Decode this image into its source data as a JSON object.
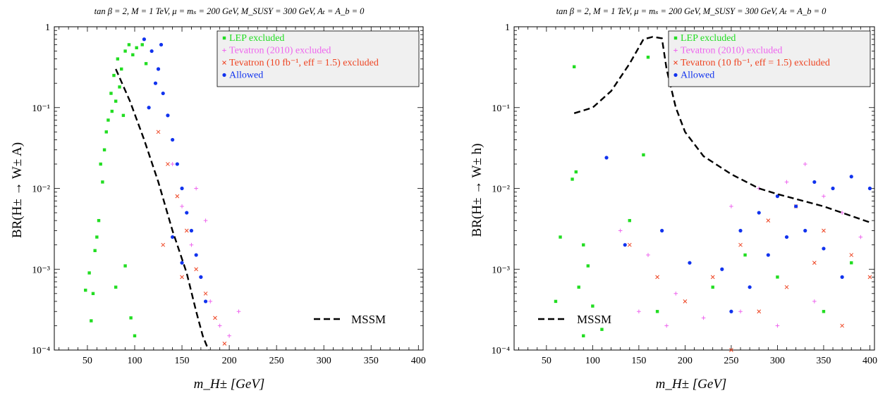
{
  "legend": {
    "entries": [
      {
        "label": "LEP excluded",
        "color": "#22dd22",
        "marker": "square"
      },
      {
        "label": "Tevatron (2010) excluded",
        "color": "#ee66ee",
        "marker": "plus"
      },
      {
        "label": "Tevatron (10 fb⁻¹, eff = 1.5) excluded",
        "color": "#ee4422",
        "marker": "cross"
      },
      {
        "label": "Allowed",
        "color": "#1133ee",
        "marker": "dot"
      }
    ],
    "placement": "top-right"
  },
  "chart_data": [
    {
      "type": "scatter",
      "title": "tan β = 2,  M = 1 TeV,  μ = mₛ = 200 GeV,  M_SUSY = 300 GeV,  Aₜ = A_b = 0",
      "xlabel": "m_H± [GeV]",
      "ylabel": "BR(H± → W± A)",
      "xlim": [
        15,
        405
      ],
      "ylim": [
        0.0001,
        1
      ],
      "yscale": "log",
      "xticks": [
        50,
        100,
        150,
        200,
        250,
        300,
        350,
        400
      ],
      "xtick_labels": [
        "50",
        "100",
        "150",
        "200",
        "250",
        "300",
        "350",
        "400"
      ],
      "yticks": [
        0.0001,
        0.001,
        0.01,
        0.1,
        1
      ],
      "ytick_labels": [
        "10⁻⁴",
        "10⁻³",
        "10⁻²",
        "10⁻¹",
        "1"
      ],
      "grid": false,
      "series": [
        {
          "name": "LEP excluded",
          "points": [
            [
              48,
              0.00055
            ],
            [
              52,
              0.0009
            ],
            [
              58,
              0.0017
            ],
            [
              62,
              0.004
            ],
            [
              66,
              0.012
            ],
            [
              68,
              0.03
            ],
            [
              72,
              0.07
            ],
            [
              75,
              0.15
            ],
            [
              78,
              0.25
            ],
            [
              82,
              0.4
            ],
            [
              86,
              0.3
            ],
            [
              90,
              0.5
            ],
            [
              94,
              0.6
            ],
            [
              98,
              0.45
            ],
            [
              102,
              0.55
            ],
            [
              108,
              0.6
            ],
            [
              112,
              0.35
            ],
            [
              70,
              0.05
            ],
            [
              76,
              0.09
            ],
            [
              80,
              0.12
            ],
            [
              84,
              0.18
            ],
            [
              88,
              0.08
            ],
            [
              64,
              0.02
            ],
            [
              60,
              0.0025
            ],
            [
              56,
              0.0005
            ],
            [
              54,
              0.00023
            ],
            [
              80,
              0.0006
            ],
            [
              90,
              0.0011
            ],
            [
              96,
              0.00025
            ],
            [
              100,
              0.00015
            ]
          ]
        },
        {
          "name": "Tevatron (2010) excluded",
          "points": [
            [
              140,
              0.02
            ],
            [
              150,
              0.006
            ],
            [
              160,
              0.002
            ],
            [
              170,
              0.0008
            ],
            [
              180,
              0.0004
            ],
            [
              190,
              0.0002
            ],
            [
              200,
              0.00015
            ],
            [
              210,
              0.0003
            ],
            [
              165,
              0.01
            ],
            [
              175,
              0.004
            ]
          ]
        },
        {
          "name": "Tevatron (10 fb⁻¹, eff = 1.5) excluded",
          "points": [
            [
              125,
              0.05
            ],
            [
              135,
              0.02
            ],
            [
              145,
              0.008
            ],
            [
              155,
              0.003
            ],
            [
              165,
              0.001
            ],
            [
              175,
              0.0005
            ],
            [
              185,
              0.00025
            ],
            [
              195,
              0.00012
            ],
            [
              130,
              0.002
            ],
            [
              150,
              0.0008
            ]
          ]
        },
        {
          "name": "Allowed",
          "points": [
            [
              110,
              0.7
            ],
            [
              118,
              0.5
            ],
            [
              125,
              0.3
            ],
            [
              130,
              0.15
            ],
            [
              135,
              0.08
            ],
            [
              140,
              0.04
            ],
            [
              145,
              0.02
            ],
            [
              150,
              0.01
            ],
            [
              155,
              0.005
            ],
            [
              160,
              0.003
            ],
            [
              165,
              0.0015
            ],
            [
              170,
              0.0008
            ],
            [
              175,
              0.0004
            ],
            [
              150,
              0.0012
            ],
            [
              140,
              0.0025
            ],
            [
              128,
              0.6
            ],
            [
              122,
              0.2
            ],
            [
              115,
              0.1
            ]
          ]
        },
        {
          "name": "MSSM",
          "line": "dashed",
          "points": [
            [
              80,
              0.3
            ],
            [
              95,
              0.12
            ],
            [
              110,
              0.04
            ],
            [
              125,
              0.012
            ],
            [
              140,
              0.003
            ],
            [
              155,
              0.0009
            ],
            [
              165,
              0.0003
            ],
            [
              172,
              0.00015
            ],
            [
              178,
              0.0001
            ]
          ]
        }
      ]
    },
    {
      "type": "scatter",
      "title": "tan β = 2,  M = 1 TeV,  μ = mₛ = 200 GeV,  M_SUSY = 300 GeV,  Aₜ = A_b = 0",
      "xlabel": "m_H± [GeV]",
      "ylabel": "BR(H± → W± h)",
      "xlim": [
        15,
        405
      ],
      "ylim": [
        0.0001,
        1
      ],
      "yscale": "log",
      "xticks": [
        50,
        100,
        150,
        200,
        250,
        300,
        350,
        400
      ],
      "xtick_labels": [
        "50",
        "100",
        "150",
        "200",
        "250",
        "300",
        "350",
        "400"
      ],
      "yticks": [
        0.0001,
        0.001,
        0.01,
        0.1,
        1
      ],
      "ytick_labels": [
        "10⁻⁴",
        "10⁻³",
        "10⁻²",
        "10⁻¹",
        "1"
      ],
      "grid": false,
      "series": [
        {
          "name": "LEP excluded",
          "points": [
            [
              80,
              0.32
            ],
            [
              160,
              0.42
            ],
            [
              155,
              0.026
            ],
            [
              78,
              0.013
            ],
            [
              82,
              0.016
            ],
            [
              90,
              0.002
            ],
            [
              95,
              0.0011
            ],
            [
              85,
              0.0006
            ],
            [
              100,
              0.00035
            ],
            [
              110,
              0.00018
            ],
            [
              65,
              0.0025
            ],
            [
              60,
              0.0004
            ],
            [
              90,
              0.00015
            ],
            [
              140,
              0.004
            ],
            [
              170,
              0.0003
            ],
            [
              230,
              0.0006
            ],
            [
              300,
              0.0008
            ],
            [
              350,
              0.0003
            ],
            [
              380,
              0.0012
            ],
            [
              265,
              0.0015
            ]
          ]
        },
        {
          "name": "Tevatron (2010) excluded",
          "points": [
            [
              130,
              0.003
            ],
            [
              160,
              0.0015
            ],
            [
              190,
              0.0005
            ],
            [
              220,
              0.00025
            ],
            [
              250,
              0.006
            ],
            [
              280,
              0.01
            ],
            [
              310,
              0.012
            ],
            [
              330,
              0.02
            ],
            [
              350,
              0.008
            ],
            [
              370,
              0.005
            ],
            [
              390,
              0.0025
            ],
            [
              260,
              0.0003
            ],
            [
              300,
              0.0002
            ],
            [
              340,
              0.0004
            ],
            [
              180,
              0.0002
            ],
            [
              150,
              0.0003
            ]
          ]
        },
        {
          "name": "Tevatron (10 fb⁻¹, eff = 1.5) excluded",
          "points": [
            [
              140,
              0.002
            ],
            [
              170,
              0.0008
            ],
            [
              200,
              0.0004
            ],
            [
              230,
              0.0008
            ],
            [
              260,
              0.002
            ],
            [
              290,
              0.004
            ],
            [
              320,
              0.006
            ],
            [
              350,
              0.003
            ],
            [
              380,
              0.0015
            ],
            [
              400,
              0.0008
            ],
            [
              250,
              0.0001
            ],
            [
              280,
              0.0003
            ],
            [
              310,
              0.0006
            ],
            [
              340,
              0.0012
            ],
            [
              370,
              0.0002
            ]
          ]
        },
        {
          "name": "Allowed",
          "points": [
            [
              115,
              0.024
            ],
            [
              135,
              0.002
            ],
            [
              175,
              0.003
            ],
            [
              205,
              0.0012
            ],
            [
              240,
              0.001
            ],
            [
              260,
              0.003
            ],
            [
              280,
              0.005
            ],
            [
              300,
              0.008
            ],
            [
              320,
              0.006
            ],
            [
              340,
              0.012
            ],
            [
              360,
              0.01
            ],
            [
              380,
              0.014
            ],
            [
              400,
              0.01
            ],
            [
              310,
              0.0025
            ],
            [
              330,
              0.003
            ],
            [
              350,
              0.0018
            ],
            [
              370,
              0.0008
            ],
            [
              290,
              0.0015
            ],
            [
              270,
              0.0006
            ],
            [
              250,
              0.0003
            ]
          ]
        },
        {
          "name": "MSSM",
          "line": "dashed",
          "points": [
            [
              80,
              0.085
            ],
            [
              100,
              0.1
            ],
            [
              120,
              0.16
            ],
            [
              140,
              0.35
            ],
            [
              155,
              0.7
            ],
            [
              165,
              0.75
            ],
            [
              175,
              0.72
            ],
            [
              180,
              0.3
            ],
            [
              190,
              0.1
            ],
            [
              200,
              0.05
            ],
            [
              220,
              0.025
            ],
            [
              250,
              0.015
            ],
            [
              280,
              0.01
            ],
            [
              300,
              0.0085
            ],
            [
              350,
              0.006
            ],
            [
              400,
              0.0038
            ]
          ]
        }
      ]
    }
  ],
  "annotations": [
    {
      "text": "MSSM",
      "panel": 0
    },
    {
      "text": "MSSM",
      "panel": 1
    }
  ]
}
